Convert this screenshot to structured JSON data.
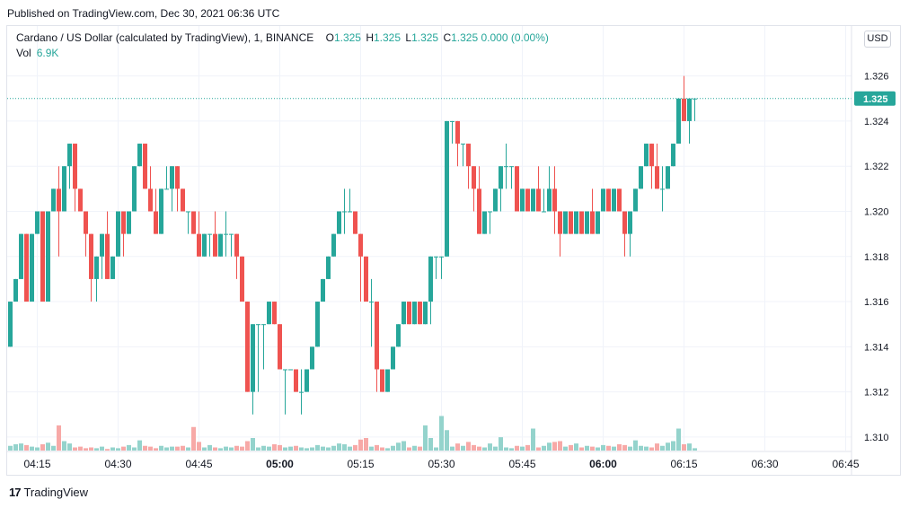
{
  "header": {
    "published": "Published on TradingView.com, Dec 30, 2021 06:36 UTC"
  },
  "legend": {
    "symbol": "Cardano / US Dollar (calculated by TradingView), 1, BINANCE",
    "o_label": "O",
    "o_value": "1.325",
    "h_label": "H",
    "h_value": "1.325",
    "l_label": "L",
    "l_value": "1.325",
    "c_label": "C",
    "c_value": "1.325",
    "change": "0.000 (0.00%)",
    "vol_label": "Vol",
    "vol_value": "6.9K"
  },
  "currency_button": "USD",
  "footer": {
    "logo_glyph": "17",
    "brand": "TradingView"
  },
  "colors": {
    "up": "#26a69a",
    "down": "#ef5350",
    "up_vol": "#94d3cc",
    "down_vol": "#f7a9a7",
    "grid": "#f0f3fa"
  },
  "chart_data": {
    "type": "candlestick",
    "title": "Cardano / US Dollar (calculated by TradingView), 1, BINANCE",
    "interval_minutes": 1,
    "x_start": "04:10",
    "x_ticks": [
      "04:15",
      "04:30",
      "04:45",
      "05:00",
      "05:15",
      "05:30",
      "05:45",
      "06:00",
      "06:15",
      "06:30",
      "06:45"
    ],
    "y_ticks": [
      "1.310",
      "1.312",
      "1.314",
      "1.316",
      "1.318",
      "1.320",
      "1.322",
      "1.324",
      "1.326"
    ],
    "ylim": [
      1.3094,
      1.3269
    ],
    "last_price": 1.325,
    "last_price_label": "1.325",
    "volume_unit": "K",
    "volume_max": 12,
    "candles": [
      {
        "o": 1.314,
        "h": 1.316,
        "l": 1.314,
        "c": 1.316,
        "v": 0.6
      },
      {
        "o": 1.316,
        "h": 1.317,
        "l": 1.316,
        "c": 1.317,
        "v": 0.8
      },
      {
        "o": 1.317,
        "h": 1.319,
        "l": 1.317,
        "c": 1.319,
        "v": 0.9
      },
      {
        "o": 1.319,
        "h": 1.319,
        "l": 1.316,
        "c": 1.316,
        "v": 0.7
      },
      {
        "o": 1.316,
        "h": 1.319,
        "l": 1.316,
        "c": 1.319,
        "v": 0.5
      },
      {
        "o": 1.319,
        "h": 1.32,
        "l": 1.319,
        "c": 1.32,
        "v": 0.4
      },
      {
        "o": 1.32,
        "h": 1.32,
        "l": 1.316,
        "c": 1.316,
        "v": 0.8
      },
      {
        "o": 1.316,
        "h": 1.32,
        "l": 1.316,
        "c": 1.32,
        "v": 1.0
      },
      {
        "o": 1.32,
        "h": 1.321,
        "l": 1.32,
        "c": 1.321,
        "v": 0.6
      },
      {
        "o": 1.321,
        "h": 1.322,
        "l": 1.318,
        "c": 1.32,
        "v": 3.2
      },
      {
        "o": 1.32,
        "h": 1.322,
        "l": 1.32,
        "c": 1.322,
        "v": 1.2
      },
      {
        "o": 1.322,
        "h": 1.323,
        "l": 1.321,
        "c": 1.323,
        "v": 0.9
      },
      {
        "o": 1.323,
        "h": 1.323,
        "l": 1.32,
        "c": 1.321,
        "v": 0.4
      },
      {
        "o": 1.321,
        "h": 1.321,
        "l": 1.32,
        "c": 1.32,
        "v": 0.5
      },
      {
        "o": 1.32,
        "h": 1.32,
        "l": 1.318,
        "c": 1.319,
        "v": 0.3
      },
      {
        "o": 1.319,
        "h": 1.319,
        "l": 1.316,
        "c": 1.317,
        "v": 0.4
      },
      {
        "o": 1.317,
        "h": 1.318,
        "l": 1.316,
        "c": 1.318,
        "v": 0.3
      },
      {
        "o": 1.318,
        "h": 1.319,
        "l": 1.317,
        "c": 1.319,
        "v": 0.5
      },
      {
        "o": 1.319,
        "h": 1.32,
        "l": 1.317,
        "c": 1.317,
        "v": 0.2
      },
      {
        "o": 1.317,
        "h": 1.318,
        "l": 1.317,
        "c": 1.318,
        "v": 0.4
      },
      {
        "o": 1.318,
        "h": 1.32,
        "l": 1.318,
        "c": 1.32,
        "v": 0.3
      },
      {
        "o": 1.32,
        "h": 1.32,
        "l": 1.318,
        "c": 1.319,
        "v": 0.5
      },
      {
        "o": 1.319,
        "h": 1.32,
        "l": 1.319,
        "c": 1.32,
        "v": 0.7
      },
      {
        "o": 1.32,
        "h": 1.322,
        "l": 1.32,
        "c": 1.322,
        "v": 0.4
      },
      {
        "o": 1.322,
        "h": 1.323,
        "l": 1.322,
        "c": 1.323,
        "v": 1.3
      },
      {
        "o": 1.323,
        "h": 1.323,
        "l": 1.321,
        "c": 1.321,
        "v": 0.6
      },
      {
        "o": 1.321,
        "h": 1.322,
        "l": 1.32,
        "c": 1.32,
        "v": 0.5
      },
      {
        "o": 1.32,
        "h": 1.321,
        "l": 1.319,
        "c": 1.319,
        "v": 0.3
      },
      {
        "o": 1.319,
        "h": 1.321,
        "l": 1.319,
        "c": 1.321,
        "v": 0.6
      },
      {
        "o": 1.321,
        "h": 1.322,
        "l": 1.321,
        "c": 1.321,
        "v": 0.4
      },
      {
        "o": 1.321,
        "h": 1.322,
        "l": 1.32,
        "c": 1.322,
        "v": 0.5
      },
      {
        "o": 1.322,
        "h": 1.322,
        "l": 1.32,
        "c": 1.321,
        "v": 0.5
      },
      {
        "o": 1.321,
        "h": 1.321,
        "l": 1.32,
        "c": 1.32,
        "v": 0.6
      },
      {
        "o": 1.32,
        "h": 1.32,
        "l": 1.319,
        "c": 1.32,
        "v": 0.4
      },
      {
        "o": 1.32,
        "h": 1.32,
        "l": 1.319,
        "c": 1.319,
        "v": 3.0
      },
      {
        "o": 1.319,
        "h": 1.32,
        "l": 1.318,
        "c": 1.318,
        "v": 1.1
      },
      {
        "o": 1.318,
        "h": 1.319,
        "l": 1.318,
        "c": 1.319,
        "v": 0.4
      },
      {
        "o": 1.319,
        "h": 1.319,
        "l": 1.318,
        "c": 1.319,
        "v": 0.7
      },
      {
        "o": 1.319,
        "h": 1.32,
        "l": 1.318,
        "c": 1.318,
        "v": 0.4
      },
      {
        "o": 1.318,
        "h": 1.319,
        "l": 1.318,
        "c": 1.319,
        "v": 0.3
      },
      {
        "o": 1.319,
        "h": 1.32,
        "l": 1.318,
        "c": 1.319,
        "v": 0.5
      },
      {
        "o": 1.319,
        "h": 1.319,
        "l": 1.318,
        "c": 1.319,
        "v": 0.4
      },
      {
        "o": 1.319,
        "h": 1.319,
        "l": 1.317,
        "c": 1.318,
        "v": 0.6
      },
      {
        "o": 1.318,
        "h": 1.318,
        "l": 1.316,
        "c": 1.316,
        "v": 0.5
      },
      {
        "o": 1.316,
        "h": 1.316,
        "l": 1.312,
        "c": 1.312,
        "v": 1.2
      },
      {
        "o": 1.312,
        "h": 1.315,
        "l": 1.311,
        "c": 1.315,
        "v": 1.6
      },
      {
        "o": 1.315,
        "h": 1.315,
        "l": 1.312,
        "c": 1.315,
        "v": 0.4
      },
      {
        "o": 1.315,
        "h": 1.315,
        "l": 1.313,
        "c": 1.315,
        "v": 0.6
      },
      {
        "o": 1.315,
        "h": 1.316,
        "l": 1.315,
        "c": 1.316,
        "v": 0.5
      },
      {
        "o": 1.316,
        "h": 1.316,
        "l": 1.315,
        "c": 1.315,
        "v": 0.8
      },
      {
        "o": 1.315,
        "h": 1.315,
        "l": 1.313,
        "c": 1.313,
        "v": 0.7
      },
      {
        "o": 1.313,
        "h": 1.313,
        "l": 1.311,
        "c": 1.313,
        "v": 0.4
      },
      {
        "o": 1.313,
        "h": 1.313,
        "l": 1.313,
        "c": 1.313,
        "v": 0.5
      },
      {
        "o": 1.313,
        "h": 1.313,
        "l": 1.312,
        "c": 1.312,
        "v": 0.6
      },
      {
        "o": 1.312,
        "h": 1.313,
        "l": 1.311,
        "c": 1.312,
        "v": 0.4
      },
      {
        "o": 1.312,
        "h": 1.313,
        "l": 1.312,
        "c": 1.313,
        "v": 0.3
      },
      {
        "o": 1.313,
        "h": 1.314,
        "l": 1.313,
        "c": 1.314,
        "v": 0.4
      },
      {
        "o": 1.314,
        "h": 1.316,
        "l": 1.314,
        "c": 1.316,
        "v": 0.7
      },
      {
        "o": 1.316,
        "h": 1.317,
        "l": 1.316,
        "c": 1.317,
        "v": 0.5
      },
      {
        "o": 1.317,
        "h": 1.318,
        "l": 1.317,
        "c": 1.318,
        "v": 0.4
      },
      {
        "o": 1.318,
        "h": 1.319,
        "l": 1.318,
        "c": 1.319,
        "v": 0.6
      },
      {
        "o": 1.319,
        "h": 1.32,
        "l": 1.319,
        "c": 1.32,
        "v": 0.9
      },
      {
        "o": 1.32,
        "h": 1.321,
        "l": 1.319,
        "c": 1.32,
        "v": 0.8
      },
      {
        "o": 1.32,
        "h": 1.321,
        "l": 1.32,
        "c": 1.32,
        "v": 0.5
      },
      {
        "o": 1.32,
        "h": 1.32,
        "l": 1.319,
        "c": 1.319,
        "v": 0.7
      },
      {
        "o": 1.319,
        "h": 1.319,
        "l": 1.316,
        "c": 1.318,
        "v": 1.4
      },
      {
        "o": 1.318,
        "h": 1.318,
        "l": 1.316,
        "c": 1.316,
        "v": 1.6
      },
      {
        "o": 1.316,
        "h": 1.317,
        "l": 1.314,
        "c": 1.316,
        "v": 0.5
      },
      {
        "o": 1.316,
        "h": 1.316,
        "l": 1.312,
        "c": 1.313,
        "v": 0.7
      },
      {
        "o": 1.313,
        "h": 1.313,
        "l": 1.312,
        "c": 1.312,
        "v": 0.4
      },
      {
        "o": 1.312,
        "h": 1.313,
        "l": 1.312,
        "c": 1.313,
        "v": 0.3
      },
      {
        "o": 1.313,
        "h": 1.314,
        "l": 1.313,
        "c": 1.314,
        "v": 0.6
      },
      {
        "o": 1.314,
        "h": 1.315,
        "l": 1.314,
        "c": 1.315,
        "v": 1.0
      },
      {
        "o": 1.315,
        "h": 1.316,
        "l": 1.315,
        "c": 1.316,
        "v": 1.2
      },
      {
        "o": 1.316,
        "h": 1.316,
        "l": 1.315,
        "c": 1.315,
        "v": 0.4
      },
      {
        "o": 1.315,
        "h": 1.316,
        "l": 1.315,
        "c": 1.316,
        "v": 0.6
      },
      {
        "o": 1.316,
        "h": 1.316,
        "l": 1.315,
        "c": 1.315,
        "v": 0.5
      },
      {
        "o": 1.315,
        "h": 1.316,
        "l": 1.315,
        "c": 1.316,
        "v": 3.2
      },
      {
        "o": 1.316,
        "h": 1.318,
        "l": 1.315,
        "c": 1.318,
        "v": 1.6
      },
      {
        "o": 1.318,
        "h": 1.318,
        "l": 1.317,
        "c": 1.318,
        "v": 0.4
      },
      {
        "o": 1.318,
        "h": 1.318,
        "l": 1.317,
        "c": 1.318,
        "v": 4.4
      },
      {
        "o": 1.318,
        "h": 1.324,
        "l": 1.318,
        "c": 1.324,
        "v": 2.6
      },
      {
        "o": 1.324,
        "h": 1.324,
        "l": 1.323,
        "c": 1.324,
        "v": 0.5
      },
      {
        "o": 1.324,
        "h": 1.324,
        "l": 1.322,
        "c": 1.323,
        "v": 0.9
      },
      {
        "o": 1.323,
        "h": 1.323,
        "l": 1.322,
        "c": 1.323,
        "v": 0.6
      },
      {
        "o": 1.323,
        "h": 1.323,
        "l": 1.321,
        "c": 1.322,
        "v": 1.1
      },
      {
        "o": 1.322,
        "h": 1.322,
        "l": 1.32,
        "c": 1.321,
        "v": 0.7
      },
      {
        "o": 1.321,
        "h": 1.322,
        "l": 1.319,
        "c": 1.319,
        "v": 0.5
      },
      {
        "o": 1.319,
        "h": 1.32,
        "l": 1.319,
        "c": 1.32,
        "v": 0.4
      },
      {
        "o": 1.32,
        "h": 1.32,
        "l": 1.319,
        "c": 1.32,
        "v": 0.9
      },
      {
        "o": 1.32,
        "h": 1.321,
        "l": 1.32,
        "c": 1.321,
        "v": 0.5
      },
      {
        "o": 1.321,
        "h": 1.322,
        "l": 1.32,
        "c": 1.322,
        "v": 1.7
      },
      {
        "o": 1.322,
        "h": 1.323,
        "l": 1.321,
        "c": 1.322,
        "v": 0.4
      },
      {
        "o": 1.322,
        "h": 1.322,
        "l": 1.321,
        "c": 1.322,
        "v": 0.3
      },
      {
        "o": 1.322,
        "h": 1.322,
        "l": 1.32,
        "c": 1.32,
        "v": 0.6
      },
      {
        "o": 1.32,
        "h": 1.321,
        "l": 1.32,
        "c": 1.321,
        "v": 0.5
      },
      {
        "o": 1.321,
        "h": 1.321,
        "l": 1.32,
        "c": 1.32,
        "v": 0.7
      },
      {
        "o": 1.32,
        "h": 1.321,
        "l": 1.32,
        "c": 1.321,
        "v": 2.8
      },
      {
        "o": 1.321,
        "h": 1.322,
        "l": 1.32,
        "c": 1.32,
        "v": 0.4
      },
      {
        "o": 1.32,
        "h": 1.321,
        "l": 1.32,
        "c": 1.32,
        "v": 0.6
      },
      {
        "o": 1.32,
        "h": 1.322,
        "l": 1.32,
        "c": 1.321,
        "v": 1.0
      },
      {
        "o": 1.321,
        "h": 1.322,
        "l": 1.319,
        "c": 1.32,
        "v": 1.1
      },
      {
        "o": 1.32,
        "h": 1.32,
        "l": 1.318,
        "c": 1.319,
        "v": 1.2
      },
      {
        "o": 1.319,
        "h": 1.32,
        "l": 1.319,
        "c": 1.32,
        "v": 0.5
      },
      {
        "o": 1.32,
        "h": 1.32,
        "l": 1.319,
        "c": 1.319,
        "v": 0.7
      },
      {
        "o": 1.319,
        "h": 1.32,
        "l": 1.319,
        "c": 1.32,
        "v": 0.9
      },
      {
        "o": 1.32,
        "h": 1.32,
        "l": 1.319,
        "c": 1.319,
        "v": 0.4
      },
      {
        "o": 1.319,
        "h": 1.32,
        "l": 1.319,
        "c": 1.32,
        "v": 0.6
      },
      {
        "o": 1.32,
        "h": 1.321,
        "l": 1.319,
        "c": 1.319,
        "v": 0.5
      },
      {
        "o": 1.319,
        "h": 1.32,
        "l": 1.319,
        "c": 1.32,
        "v": 0.4
      },
      {
        "o": 1.32,
        "h": 1.321,
        "l": 1.32,
        "c": 1.321,
        "v": 0.7
      },
      {
        "o": 1.321,
        "h": 1.321,
        "l": 1.32,
        "c": 1.32,
        "v": 0.6
      },
      {
        "o": 1.32,
        "h": 1.321,
        "l": 1.32,
        "c": 1.321,
        "v": 0.5
      },
      {
        "o": 1.321,
        "h": 1.321,
        "l": 1.32,
        "c": 1.32,
        "v": 0.8
      },
      {
        "o": 1.32,
        "h": 1.32,
        "l": 1.318,
        "c": 1.319,
        "v": 0.7
      },
      {
        "o": 1.319,
        "h": 1.32,
        "l": 1.318,
        "c": 1.32,
        "v": 0.5
      },
      {
        "o": 1.32,
        "h": 1.321,
        "l": 1.32,
        "c": 1.321,
        "v": 1.3
      },
      {
        "o": 1.321,
        "h": 1.322,
        "l": 1.321,
        "c": 1.322,
        "v": 0.6
      },
      {
        "o": 1.322,
        "h": 1.323,
        "l": 1.322,
        "c": 1.323,
        "v": 0.5
      },
      {
        "o": 1.323,
        "h": 1.323,
        "l": 1.321,
        "c": 1.322,
        "v": 0.4
      },
      {
        "o": 1.322,
        "h": 1.323,
        "l": 1.321,
        "c": 1.321,
        "v": 0.9
      },
      {
        "o": 1.321,
        "h": 1.322,
        "l": 1.32,
        "c": 1.321,
        "v": 0.6
      },
      {
        "o": 1.321,
        "h": 1.322,
        "l": 1.321,
        "c": 1.322,
        "v": 1.0
      },
      {
        "o": 1.322,
        "h": 1.323,
        "l": 1.322,
        "c": 1.323,
        "v": 1.2
      },
      {
        "o": 1.323,
        "h": 1.325,
        "l": 1.323,
        "c": 1.325,
        "v": 2.8
      },
      {
        "o": 1.325,
        "h": 1.326,
        "l": 1.324,
        "c": 1.324,
        "v": 0.8
      },
      {
        "o": 1.324,
        "h": 1.325,
        "l": 1.323,
        "c": 1.325,
        "v": 0.9
      },
      {
        "o": 1.325,
        "h": 1.325,
        "l": 1.324,
        "c": 1.325,
        "v": 0.3
      }
    ]
  }
}
